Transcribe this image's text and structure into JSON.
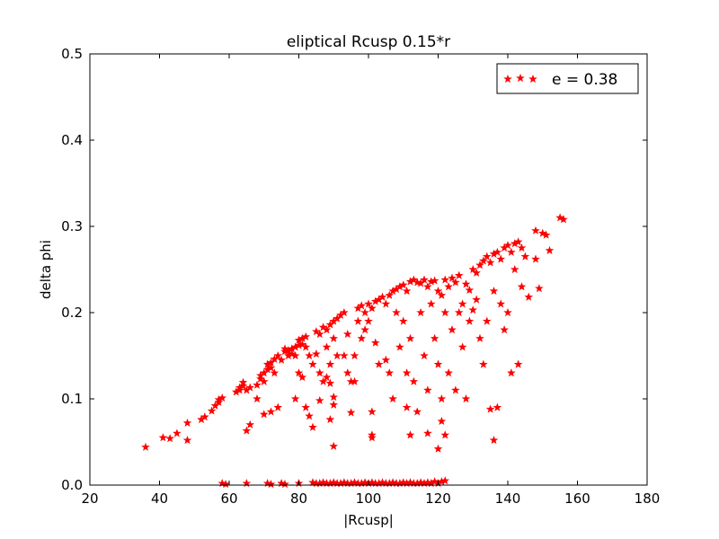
{
  "chart_data": {
    "type": "scatter",
    "title": "eliptical Rcusp 0.15*r",
    "xlabel": "|Rcusp|",
    "ylabel": "delta phi",
    "xlim": [
      20,
      180
    ],
    "ylim": [
      0.0,
      0.5
    ],
    "x_ticks": [
      "20",
      "40",
      "60",
      "80",
      "100",
      "120",
      "140",
      "160",
      "180"
    ],
    "y_ticks": [
      "0.0",
      "0.1",
      "0.2",
      "0.3",
      "0.4",
      "0.5"
    ],
    "grid": false,
    "legend_position": "upper right",
    "marker": "star",
    "series": [
      {
        "name": "e = 0.38",
        "color": "#ff0000",
        "points": [
          [
            36,
            0.044
          ],
          [
            41,
            0.055
          ],
          [
            43,
            0.054
          ],
          [
            45,
            0.06
          ],
          [
            48,
            0.072
          ],
          [
            48,
            0.052
          ],
          [
            52,
            0.076
          ],
          [
            53,
            0.079
          ],
          [
            55,
            0.086
          ],
          [
            56,
            0.092
          ],
          [
            57,
            0.096
          ],
          [
            57,
            0.099
          ],
          [
            58,
            0.101
          ],
          [
            62,
            0.108
          ],
          [
            63,
            0.11
          ],
          [
            63,
            0.113
          ],
          [
            64,
            0.115
          ],
          [
            64,
            0.119
          ],
          [
            65,
            0.11
          ],
          [
            65,
            0.063
          ],
          [
            66,
            0.07
          ],
          [
            66,
            0.113
          ],
          [
            68,
            0.1
          ],
          [
            68,
            0.116
          ],
          [
            69,
            0.123
          ],
          [
            69,
            0.127
          ],
          [
            70,
            0.12
          ],
          [
            70,
            0.13
          ],
          [
            71,
            0.134
          ],
          [
            71,
            0.14
          ],
          [
            72,
            0.142
          ],
          [
            72,
            0.136
          ],
          [
            73,
            0.146
          ],
          [
            73,
            0.13
          ],
          [
            72,
            0.085
          ],
          [
            74,
            0.09
          ],
          [
            70,
            0.082
          ],
          [
            74,
            0.15
          ],
          [
            75,
            0.145
          ],
          [
            76,
            0.155
          ],
          [
            76,
            0.158
          ],
          [
            77,
            0.15
          ],
          [
            77,
            0.156
          ],
          [
            78,
            0.152
          ],
          [
            78,
            0.158
          ],
          [
            79,
            0.16
          ],
          [
            79,
            0.15
          ],
          [
            80,
            0.162
          ],
          [
            80,
            0.168
          ],
          [
            81,
            0.163
          ],
          [
            81,
            0.17
          ],
          [
            82,
            0.172
          ],
          [
            82,
            0.16
          ],
          [
            80,
            0.13
          ],
          [
            81,
            0.125
          ],
          [
            79,
            0.1
          ],
          [
            82,
            0.09
          ],
          [
            83,
            0.08
          ],
          [
            84,
            0.067
          ],
          [
            83,
            0.15
          ],
          [
            84,
            0.14
          ],
          [
            85,
            0.152
          ],
          [
            85,
            0.178
          ],
          [
            86,
            0.175
          ],
          [
            86,
            0.13
          ],
          [
            87,
            0.12
          ],
          [
            87,
            0.183
          ],
          [
            88,
            0.18
          ],
          [
            88,
            0.16
          ],
          [
            89,
            0.186
          ],
          [
            89,
            0.14
          ],
          [
            90,
            0.19
          ],
          [
            90,
            0.17
          ],
          [
            91,
            0.193
          ],
          [
            91,
            0.15
          ],
          [
            88,
            0.125
          ],
          [
            89,
            0.118
          ],
          [
            90,
            0.093
          ],
          [
            90,
            0.102
          ],
          [
            86,
            0.098
          ],
          [
            89,
            0.076
          ],
          [
            90,
            0.045
          ],
          [
            92,
            0.197
          ],
          [
            93,
            0.2
          ],
          [
            93,
            0.15
          ],
          [
            94,
            0.175
          ],
          [
            94,
            0.13
          ],
          [
            95,
            0.12
          ],
          [
            95,
            0.084
          ],
          [
            96,
            0.15
          ],
          [
            96,
            0.12
          ],
          [
            97,
            0.205
          ],
          [
            97,
            0.19
          ],
          [
            98,
            0.208
          ],
          [
            98,
            0.17
          ],
          [
            99,
            0.2
          ],
          [
            99,
            0.18
          ],
          [
            100,
            0.21
          ],
          [
            100,
            0.19
          ],
          [
            101,
            0.205
          ],
          [
            101,
            0.085
          ],
          [
            101,
            0.058
          ],
          [
            101,
            0.055
          ],
          [
            102,
            0.213
          ],
          [
            102,
            0.165
          ],
          [
            103,
            0.215
          ],
          [
            103,
            0.14
          ],
          [
            104,
            0.218
          ],
          [
            105,
            0.21
          ],
          [
            105,
            0.145
          ],
          [
            106,
            0.22
          ],
          [
            106,
            0.13
          ],
          [
            107,
            0.225
          ],
          [
            107,
            0.1
          ],
          [
            108,
            0.227
          ],
          [
            108,
            0.2
          ],
          [
            109,
            0.23
          ],
          [
            109,
            0.16
          ],
          [
            110,
            0.232
          ],
          [
            110,
            0.19
          ],
          [
            111,
            0.225
          ],
          [
            111,
            0.13
          ],
          [
            111,
            0.09
          ],
          [
            112,
            0.236
          ],
          [
            112,
            0.17
          ],
          [
            112,
            0.058
          ],
          [
            113,
            0.238
          ],
          [
            113,
            0.12
          ],
          [
            114,
            0.235
          ],
          [
            114,
            0.085
          ],
          [
            115,
            0.234
          ],
          [
            115,
            0.2
          ],
          [
            116,
            0.238
          ],
          [
            116,
            0.15
          ],
          [
            117,
            0.23
          ],
          [
            117,
            0.11
          ],
          [
            117,
            0.06
          ],
          [
            118,
            0.236
          ],
          [
            118,
            0.21
          ],
          [
            119,
            0.237
          ],
          [
            119,
            0.17
          ],
          [
            120,
            0.225
          ],
          [
            120,
            0.14
          ],
          [
            120,
            0.042
          ],
          [
            121,
            0.22
          ],
          [
            121,
            0.1
          ],
          [
            121,
            0.074
          ],
          [
            122,
            0.238
          ],
          [
            122,
            0.2
          ],
          [
            122,
            0.058
          ],
          [
            123,
            0.23
          ],
          [
            123,
            0.13
          ],
          [
            124,
            0.24
          ],
          [
            124,
            0.18
          ],
          [
            125,
            0.235
          ],
          [
            125,
            0.11
          ],
          [
            126,
            0.243
          ],
          [
            126,
            0.2
          ],
          [
            127,
            0.21
          ],
          [
            127,
            0.16
          ],
          [
            128,
            0.233
          ],
          [
            128,
            0.1
          ],
          [
            129,
            0.226
          ],
          [
            129,
            0.19
          ],
          [
            130,
            0.25
          ],
          [
            130,
            0.203
          ],
          [
            131,
            0.246
          ],
          [
            131,
            0.215
          ],
          [
            132,
            0.255
          ],
          [
            132,
            0.17
          ],
          [
            133,
            0.26
          ],
          [
            133,
            0.14
          ],
          [
            134,
            0.265
          ],
          [
            134,
            0.19
          ],
          [
            135,
            0.258
          ],
          [
            135,
            0.088
          ],
          [
            136,
            0.268
          ],
          [
            136,
            0.225
          ],
          [
            136,
            0.052
          ],
          [
            137,
            0.27
          ],
          [
            137,
            0.09
          ],
          [
            138,
            0.262
          ],
          [
            138,
            0.21
          ],
          [
            139,
            0.275
          ],
          [
            139,
            0.18
          ],
          [
            140,
            0.278
          ],
          [
            140,
            0.2
          ],
          [
            141,
            0.27
          ],
          [
            141,
            0.13
          ],
          [
            142,
            0.28
          ],
          [
            142,
            0.25
          ],
          [
            143,
            0.282
          ],
          [
            143,
            0.14
          ],
          [
            144,
            0.275
          ],
          [
            144,
            0.23
          ],
          [
            145,
            0.265
          ],
          [
            146,
            0.218
          ],
          [
            148,
            0.295
          ],
          [
            148,
            0.262
          ],
          [
            149,
            0.228
          ],
          [
            150,
            0.292
          ],
          [
            151,
            0.29
          ],
          [
            152,
            0.272
          ],
          [
            155,
            0.31
          ],
          [
            156,
            0.308
          ],
          [
            58,
            0.002
          ],
          [
            59,
            0.001
          ],
          [
            65,
            0.002
          ],
          [
            71,
            0.002
          ],
          [
            72,
            0.001
          ],
          [
            75,
            0.002
          ],
          [
            76,
            0.001
          ],
          [
            80,
            0.002
          ],
          [
            84,
            0.003
          ],
          [
            85,
            0.002
          ],
          [
            86,
            0.002
          ],
          [
            87,
            0.003
          ],
          [
            88,
            0.002
          ],
          [
            89,
            0.002
          ],
          [
            90,
            0.003
          ],
          [
            91,
            0.002
          ],
          [
            92,
            0.002
          ],
          [
            93,
            0.003
          ],
          [
            94,
            0.002
          ],
          [
            95,
            0.002
          ],
          [
            96,
            0.003
          ],
          [
            97,
            0.002
          ],
          [
            98,
            0.002
          ],
          [
            99,
            0.003
          ],
          [
            100,
            0.002
          ],
          [
            101,
            0.003
          ],
          [
            102,
            0.002
          ],
          [
            103,
            0.002
          ],
          [
            104,
            0.003
          ],
          [
            105,
            0.002
          ],
          [
            106,
            0.002
          ],
          [
            107,
            0.003
          ],
          [
            108,
            0.002
          ],
          [
            109,
            0.002
          ],
          [
            110,
            0.003
          ],
          [
            111,
            0.002
          ],
          [
            112,
            0.003
          ],
          [
            113,
            0.002
          ],
          [
            114,
            0.002
          ],
          [
            115,
            0.003
          ],
          [
            116,
            0.002
          ],
          [
            117,
            0.003
          ],
          [
            118,
            0.002
          ],
          [
            119,
            0.004
          ],
          [
            120,
            0.002
          ],
          [
            121,
            0.004
          ],
          [
            122,
            0.005
          ]
        ]
      }
    ]
  }
}
